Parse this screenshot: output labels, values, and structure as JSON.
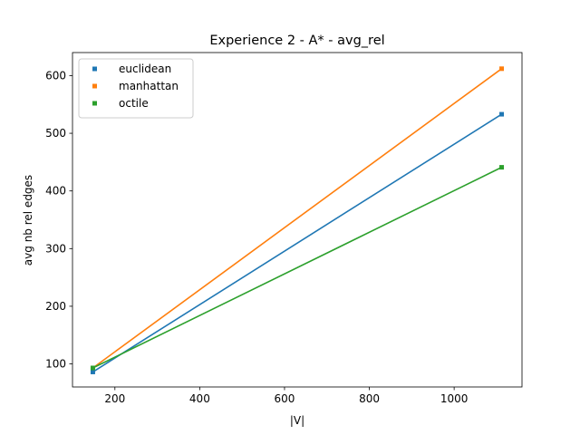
{
  "chart_data": {
    "type": "line",
    "title": "Experience 2 - A* - avg_rel",
    "xlabel": "|V|",
    "ylabel": "avg nb rel edges",
    "xlim": [
      100,
      1160
    ],
    "ylim": [
      60,
      640
    ],
    "xticks": [
      200,
      400,
      600,
      800,
      1000
    ],
    "yticks": [
      100,
      200,
      300,
      400,
      500,
      600
    ],
    "grid": false,
    "legend_position": "top-left",
    "series": [
      {
        "name": "euclidean",
        "color": "#1f77b4",
        "x": [
          148,
          1112
        ],
        "y": [
          86,
          533
        ]
      },
      {
        "name": "manhattan",
        "color": "#ff7f0e",
        "x": [
          148,
          1112
        ],
        "y": [
          93,
          612
        ]
      },
      {
        "name": "octile",
        "color": "#2ca02c",
        "x": [
          148,
          1112
        ],
        "y": [
          93,
          441
        ]
      }
    ]
  }
}
